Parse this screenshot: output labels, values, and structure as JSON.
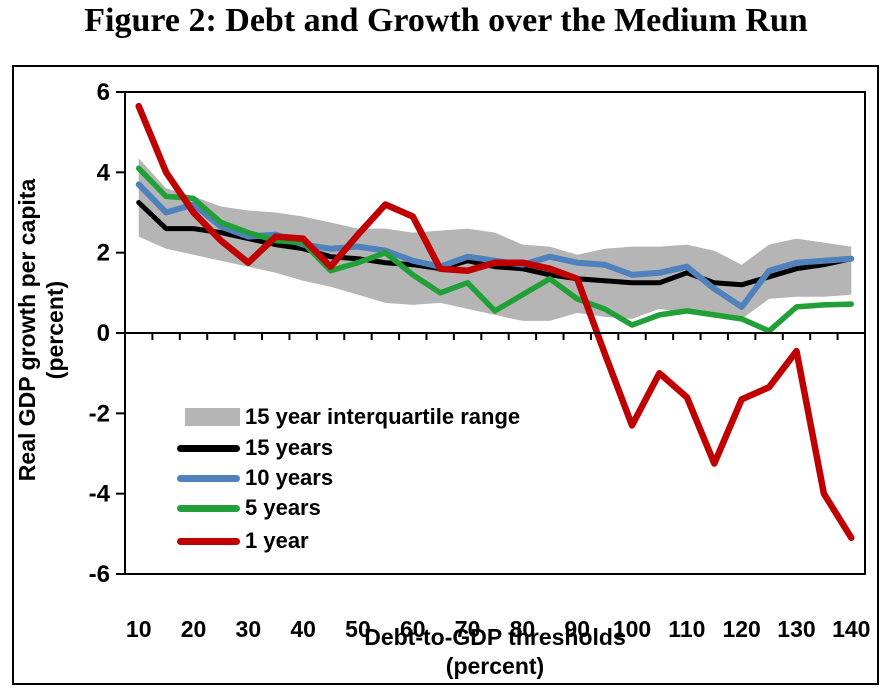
{
  "figure_title": "Figure 2: Debt and Growth over the Medium Run",
  "axes": {
    "y_title_line1": "Real GDP growth per capita",
    "y_title_line2": "(percent)",
    "x_title_line1": "Debt-to-GDP thresholds",
    "x_title_line2": "(percent)",
    "y_ticks": [
      6,
      4,
      2,
      0,
      -2,
      -4,
      -6
    ],
    "x_tick_labels": [
      10,
      20,
      30,
      40,
      50,
      60,
      70,
      80,
      90,
      100,
      110,
      120,
      130,
      140
    ]
  },
  "chart_data": {
    "type": "line",
    "title": "Figure 2: Debt and Growth over the Medium Run",
    "xlabel": "Debt-to-GDP thresholds (percent)",
    "ylabel": "Real GDP growth per capita (percent)",
    "ylim": [
      -6,
      6
    ],
    "xlim": [
      10,
      140
    ],
    "grid": false,
    "legend_position": "inside lower-left of plot",
    "x": [
      10,
      15,
      20,
      25,
      30,
      35,
      40,
      45,
      50,
      55,
      60,
      65,
      70,
      75,
      80,
      85,
      90,
      95,
      100,
      105,
      110,
      115,
      120,
      125,
      130,
      135,
      140
    ],
    "band": {
      "name": "15 year interquartile range",
      "color": "#b5b5b5",
      "upper": [
        4.35,
        3.6,
        3.4,
        3.15,
        3.05,
        3.0,
        2.9,
        2.75,
        2.6,
        2.6,
        2.5,
        2.55,
        2.6,
        2.5,
        2.2,
        2.15,
        1.95,
        2.1,
        2.15,
        2.15,
        2.2,
        2.05,
        1.7,
        2.2,
        2.35,
        2.25,
        2.15
      ],
      "lower": [
        2.4,
        2.1,
        1.95,
        1.8,
        1.65,
        1.5,
        1.3,
        1.15,
        0.95,
        0.75,
        0.7,
        0.75,
        0.6,
        0.45,
        0.3,
        0.3,
        0.5,
        0.4,
        0.35,
        0.6,
        0.5,
        0.45,
        0.35,
        0.85,
        0.9,
        0.9,
        0.95
      ]
    },
    "series": [
      {
        "name": "15 years",
        "color": "#000000",
        "values": [
          3.25,
          2.6,
          2.6,
          2.5,
          2.35,
          2.2,
          2.1,
          1.9,
          1.85,
          1.75,
          1.7,
          1.6,
          1.8,
          1.65,
          1.6,
          1.45,
          1.35,
          1.3,
          1.25,
          1.25,
          1.5,
          1.25,
          1.2,
          1.4,
          1.6,
          1.7,
          1.85
        ]
      },
      {
        "name": "10 years",
        "color": "#4f81bd",
        "values": [
          3.7,
          3.0,
          3.2,
          2.65,
          2.4,
          2.45,
          2.2,
          2.1,
          2.15,
          2.05,
          1.8,
          1.65,
          1.9,
          1.8,
          1.7,
          1.9,
          1.75,
          1.7,
          1.45,
          1.5,
          1.65,
          1.1,
          0.65,
          1.55,
          1.75,
          1.8,
          1.85
        ]
      },
      {
        "name": "5 years",
        "color": "#21a038",
        "values": [
          4.1,
          3.4,
          3.35,
          2.75,
          2.5,
          2.3,
          2.25,
          1.55,
          1.75,
          2.0,
          1.45,
          1.0,
          1.25,
          0.55,
          0.95,
          1.35,
          0.85,
          0.6,
          0.2,
          0.45,
          0.55,
          0.45,
          0.35,
          0.05,
          0.65,
          0.7,
          0.72
        ]
      },
      {
        "name": "1 year",
        "color": "#c00000",
        "values": [
          5.65,
          4.0,
          3.0,
          2.3,
          1.75,
          2.4,
          2.35,
          1.65,
          2.45,
          3.2,
          2.9,
          1.6,
          1.55,
          1.75,
          1.75,
          1.6,
          1.35,
          -0.5,
          -2.3,
          -1.0,
          -1.6,
          -3.25,
          -1.65,
          -1.35,
          -0.45,
          -4.0,
          -5.1
        ]
      }
    ]
  }
}
